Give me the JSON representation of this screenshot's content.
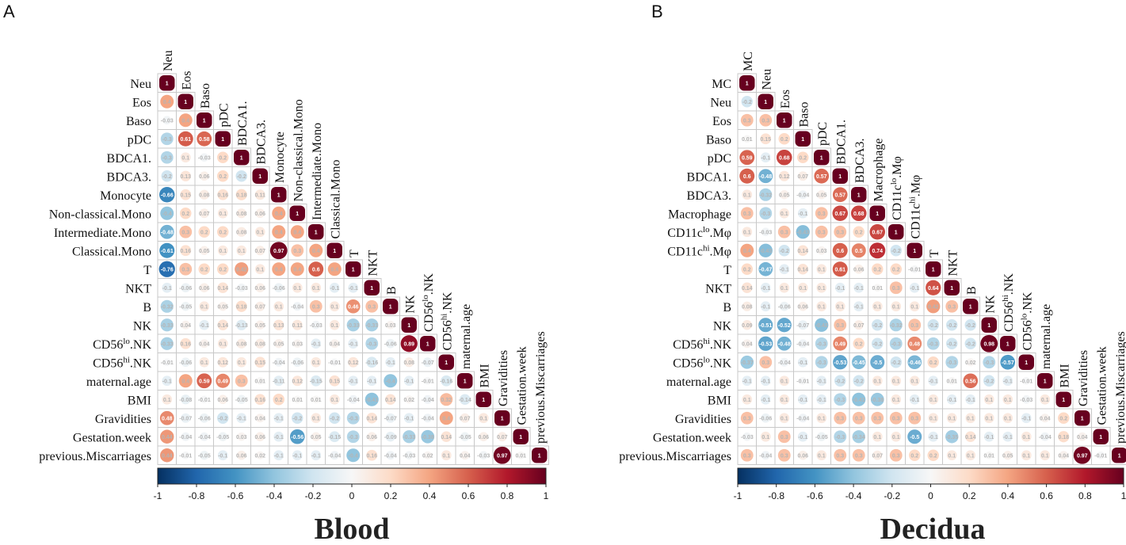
{
  "colorbar": {
    "ticks": [
      "-1",
      "-0.8",
      "-0.6",
      "-0.4",
      "-0.2",
      "0",
      "0.2",
      "0.4",
      "0.6",
      "0.8",
      "1"
    ],
    "colors": [
      "#053061",
      "#2166ac",
      "#4393c3",
      "#92c5de",
      "#d1e5f0",
      "#f7f7f7",
      "#fddbc7",
      "#f4a582",
      "#d6604d",
      "#b2182b",
      "#67001f"
    ]
  },
  "chart_data": [
    {
      "type": "heatmap",
      "panel": "A",
      "title": "Blood",
      "variables": [
        {
          "name": "Neu"
        },
        {
          "name": "Eos"
        },
        {
          "name": "Baso"
        },
        {
          "name": "pDC"
        },
        {
          "name": "BDCA1."
        },
        {
          "name": "BDCA3."
        },
        {
          "name": "Monocyte"
        },
        {
          "name": "Non-classical.Mono"
        },
        {
          "name": "Intermediate.Mono"
        },
        {
          "name": "Classical.Mono"
        },
        {
          "name": "T"
        },
        {
          "name": "NKT"
        },
        {
          "name": "B"
        },
        {
          "name": "NK"
        },
        {
          "name": "CD56",
          "sup": "lo",
          "suffix": ".NK"
        },
        {
          "name": "CD56",
          "sup": "hi",
          "suffix": ".NK"
        },
        {
          "name": "maternal.age"
        },
        {
          "name": "BMI"
        },
        {
          "name": "Gravidities"
        },
        {
          "name": "Gestation.week"
        },
        {
          "name": "previous.Miscarriages"
        }
      ],
      "matrix": [
        [
          1
        ],
        [
          0.4,
          1
        ],
        [
          -0.03,
          0.4,
          1
        ],
        [
          -0.3,
          0.61,
          0.58,
          1
        ],
        [
          -0.3,
          0.1,
          -0.03,
          0.2,
          1
        ],
        [
          -0.2,
          0.13,
          0.06,
          0.2,
          -0.2,
          1
        ],
        [
          -0.66,
          0.15,
          0.08,
          0.16,
          0.18,
          0.11,
          1
        ],
        [
          -0.4,
          0.2,
          0.07,
          0.1,
          0.08,
          0.06,
          0.4,
          1
        ],
        [
          -0.48,
          0.3,
          0.2,
          0.2,
          0.08,
          0.1,
          0.4,
          0.4,
          1
        ],
        [
          -0.61,
          0.16,
          0.05,
          0.1,
          0.1,
          0.07,
          0.97,
          0.3,
          0.4,
          1
        ],
        [
          -0.76,
          0.3,
          0.2,
          0.2,
          0.42,
          0.1,
          0.4,
          0.4,
          0.6,
          0.4,
          1
        ],
        [
          -0.1,
          -0.06,
          0.06,
          0.14,
          -0.03,
          0.06,
          -0.06,
          0.1,
          0.1,
          -0.1,
          -0.1,
          1
        ],
        [
          -0.32,
          -0.05,
          0.1,
          0.05,
          0.18,
          0.07,
          0.1,
          -0.04,
          0.3,
          0.1,
          0.46,
          0.3,
          1
        ],
        [
          -0.33,
          0.04,
          -0.1,
          0.14,
          -0.13,
          0.05,
          0.13,
          0.11,
          -0.03,
          0.1,
          -0.33,
          -0.33,
          0.03,
          1
        ],
        [
          -0.33,
          0.16,
          0.04,
          0.1,
          0.08,
          0.08,
          0.05,
          0.03,
          -0.1,
          0.04,
          -0.1,
          -0.3,
          -0.06,
          0.89,
          1
        ],
        [
          -0.01,
          -0.06,
          0.1,
          0.12,
          0.1,
          0.15,
          -0.04,
          -0.06,
          0.1,
          -0.01,
          0.12,
          -0.16,
          -0.1,
          0.08,
          -0.07,
          1
        ],
        [
          -0.1,
          0.4,
          0.59,
          0.49,
          0.3,
          0.01,
          -0.11,
          0.12,
          -0.15,
          0.15,
          -0.1,
          -0.1,
          -0.4,
          -0.1,
          -0.01,
          -0.16,
          1
        ],
        [
          0.1,
          -0.08,
          -0.01,
          0.06,
          -0.05,
          0.16,
          0.2,
          0.01,
          0.01,
          0.1,
          -0.04,
          -0.41,
          0.14,
          0.02,
          -0.04,
          0.32,
          -0.14,
          1
        ],
        [
          0.48,
          -0.07,
          -0.06,
          -0.2,
          -0.1,
          0.04,
          -0.1,
          -0.2,
          0.1,
          -0.2,
          -0.3,
          0.14,
          -0.07,
          -0.1,
          -0.04,
          0.4,
          0.07,
          0.1,
          1
        ],
        [
          0.44,
          -0.04,
          -0.04,
          -0.05,
          0.03,
          0.06,
          -0.1,
          -0.56,
          0.05,
          -0.15,
          -0.3,
          0.06,
          -0.09,
          -0.33,
          -0.38,
          0.14,
          -0.05,
          0.06,
          0.07,
          1
        ],
        [
          0.44,
          -0.01,
          -0.05,
          -0.1,
          0.06,
          0.02,
          -0.1,
          -0.1,
          -0.1,
          -0.04,
          -0.4,
          0.16,
          -0.04,
          -0.03,
          0.02,
          0.1,
          0.04,
          -0.03,
          0.97,
          0.01,
          1
        ]
      ]
    },
    {
      "type": "heatmap",
      "panel": "B",
      "title": "Decidua",
      "variables": [
        {
          "name": "MC"
        },
        {
          "name": "Neu"
        },
        {
          "name": "Eos"
        },
        {
          "name": "Baso"
        },
        {
          "name": "pDC"
        },
        {
          "name": "BDCA1."
        },
        {
          "name": "BDCA3."
        },
        {
          "name": "Macrophage"
        },
        {
          "name": "CD11c",
          "sup": "lo",
          "suffix": ".Mφ"
        },
        {
          "name": "CD11c",
          "sup": "hi",
          "suffix": ".Mφ"
        },
        {
          "name": "T"
        },
        {
          "name": "NKT"
        },
        {
          "name": "B"
        },
        {
          "name": "NK"
        },
        {
          "name": "CD56",
          "sup": "hi",
          "suffix": ".NK"
        },
        {
          "name": "CD56",
          "sup": "lo",
          "suffix": ".NK"
        },
        {
          "name": "maternal.age"
        },
        {
          "name": "BMI"
        },
        {
          "name": "Gravidities"
        },
        {
          "name": "Gestation.week"
        },
        {
          "name": "previous.Miscarriages"
        }
      ],
      "matrix": [
        [
          1
        ],
        [
          -0.2,
          1
        ],
        [
          0.3,
          0.3,
          1
        ],
        [
          0.01,
          0.15,
          0.2,
          1
        ],
        [
          0.59,
          -0.1,
          0.68,
          0.2,
          1
        ],
        [
          0.6,
          -0.48,
          0.12,
          0.07,
          0.57,
          1
        ],
        [
          0.1,
          -0.32,
          0.05,
          -0.04,
          0.05,
          0.57,
          1
        ],
        [
          0.3,
          -0.3,
          0.1,
          -0.1,
          0.3,
          0.67,
          0.68,
          1
        ],
        [
          0.1,
          -0.03,
          0.3,
          -0.43,
          0.3,
          0.3,
          0.2,
          0.67,
          1
        ],
        [
          0.4,
          -0.43,
          -0.2,
          0.14,
          0.03,
          0.6,
          0.5,
          0.74,
          -0.2,
          1
        ],
        [
          0.2,
          -0.47,
          -0.1,
          0.14,
          0.1,
          0.61,
          0.06,
          0.2,
          0.2,
          -0.01,
          1
        ],
        [
          0.14,
          -0.1,
          0.1,
          0.1,
          0.1,
          -0.1,
          -0.1,
          0.01,
          0.3,
          -0.1,
          0.64,
          1
        ],
        [
          0.08,
          -0.1,
          -0.06,
          0.06,
          0.1,
          0.1,
          -0.1,
          0.1,
          0.1,
          0.1,
          0.42,
          0.3,
          1
        ],
        [
          0.09,
          -0.51,
          -0.52,
          -0.07,
          -0.42,
          0.3,
          0.07,
          -0.2,
          -0.32,
          0.3,
          -0.2,
          -0.2,
          -0.2,
          1
        ],
        [
          0.04,
          -0.53,
          -0.48,
          -0.04,
          -0.3,
          0.49,
          0.2,
          -0.2,
          -0.3,
          0.48,
          -0.3,
          -0.2,
          -0.2,
          0.98,
          1
        ],
        [
          -0.37,
          0.3,
          -0.04,
          -0.1,
          -0.3,
          -0.53,
          -0.45,
          -0.5,
          -0.2,
          -0.46,
          0.2,
          -0.3,
          0.02,
          -0.3,
          -0.57,
          1
        ],
        [
          -0.1,
          -0.1,
          0.1,
          -0.01,
          -0.1,
          -0.2,
          -0.2,
          0.1,
          0.1,
          0.1,
          -0.1,
          0.01,
          0.56,
          -0.2,
          -0.1,
          -0.01,
          1
        ],
        [
          0.1,
          -0.1,
          0.1,
          -0.1,
          -0.1,
          -0.3,
          -0.41,
          -0.38,
          0.1,
          -0.1,
          0.1,
          -0.1,
          -0.1,
          0.1,
          0.1,
          -0.03,
          0.1,
          1
        ],
        [
          0.3,
          -0.06,
          0.1,
          -0.04,
          0.1,
          0.3,
          0.3,
          0.3,
          0.3,
          0.3,
          0.1,
          0.1,
          0.1,
          0.1,
          0.1,
          -0.1,
          0.04,
          0.2,
          1
        ],
        [
          -0.03,
          0.1,
          0.3,
          -0.1,
          -0.05,
          -0.3,
          -0.34,
          0.1,
          0.1,
          -0.5,
          -0.1,
          -0.35,
          0.14,
          -0.1,
          -0.1,
          0.1,
          -0.04,
          0.18,
          0.04,
          1
        ],
        [
          0.3,
          -0.04,
          0.3,
          0.06,
          0.1,
          0.3,
          0.3,
          0.07,
          0.3,
          0.2,
          0.2,
          0.1,
          0.1,
          0.01,
          0.05,
          0.1,
          0.1,
          0.04,
          0.97,
          -0.01,
          1
        ]
      ]
    }
  ]
}
